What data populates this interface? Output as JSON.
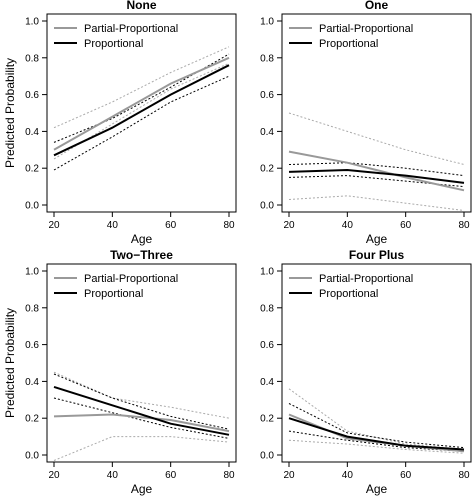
{
  "chart_data": {
    "type": "line",
    "layout": "2x2 panel grid",
    "ylabel": "Predicted Probability",
    "xlabel": "Age",
    "xlim": [
      20,
      80
    ],
    "ylim": [
      0,
      1
    ],
    "xticks": [
      20,
      40,
      60,
      80
    ],
    "yticks": [
      0.0,
      0.2,
      0.4,
      0.6,
      0.8,
      1.0
    ],
    "legend_position": "top-left",
    "legend": [
      {
        "label": "Partial-Proportional",
        "color": "#999999",
        "style": "solid"
      },
      {
        "label": "Proportional",
        "color": "#000000",
        "style": "solid"
      }
    ],
    "colors": {
      "partial": "#999999",
      "proportional": "#000000",
      "ci_partial": "#aaaaaa",
      "ci_proportional": "#000000"
    },
    "panels": [
      {
        "title": "None",
        "show_ylabel": true,
        "x": [
          20,
          40,
          60,
          80
        ],
        "series": [
          {
            "name": "Partial-Proportional",
            "kind": "line",
            "y": [
              0.3,
              0.48,
              0.66,
              0.8
            ]
          },
          {
            "name": "Proportional",
            "kind": "line",
            "y": [
              0.27,
              0.42,
              0.6,
              0.76
            ]
          },
          {
            "kind": "ci-lower-partial",
            "y": [
              0.25,
              0.44,
              0.63,
              0.77
            ]
          },
          {
            "kind": "ci-upper-partial",
            "y": [
              0.42,
              0.56,
              0.72,
              0.86
            ]
          },
          {
            "kind": "ci-lower-proportional",
            "y": [
              0.19,
              0.37,
              0.56,
              0.7
            ]
          },
          {
            "kind": "ci-upper-proportional",
            "y": [
              0.34,
              0.47,
              0.64,
              0.82
            ]
          }
        ]
      },
      {
        "title": "One",
        "show_ylabel": false,
        "x": [
          20,
          40,
          60,
          80
        ],
        "series": [
          {
            "name": "Partial-Proportional",
            "kind": "line",
            "y": [
              0.29,
              0.23,
              0.15,
              0.08
            ]
          },
          {
            "name": "Proportional",
            "kind": "line",
            "y": [
              0.18,
              0.19,
              0.16,
              0.12
            ]
          },
          {
            "kind": "ci-lower-partial",
            "y": [
              0.03,
              0.05,
              0.01,
              -0.03
            ]
          },
          {
            "kind": "ci-upper-partial",
            "y": [
              0.5,
              0.4,
              0.3,
              0.22
            ]
          },
          {
            "kind": "ci-lower-proportional",
            "y": [
              0.15,
              0.16,
              0.13,
              0.1
            ]
          },
          {
            "kind": "ci-upper-proportional",
            "y": [
              0.22,
              0.23,
              0.2,
              0.16
            ]
          }
        ]
      },
      {
        "title": "Two−Three",
        "show_ylabel": true,
        "x": [
          20,
          40,
          60,
          80
        ],
        "series": [
          {
            "name": "Partial-Proportional",
            "kind": "line",
            "y": [
              0.21,
              0.22,
              0.19,
              0.13
            ]
          },
          {
            "name": "Proportional",
            "kind": "line",
            "y": [
              0.37,
              0.27,
              0.17,
              0.11
            ]
          },
          {
            "kind": "ci-lower-partial",
            "y": [
              -0.03,
              0.1,
              0.1,
              0.07
            ]
          },
          {
            "kind": "ci-upper-partial",
            "y": [
              0.45,
              0.31,
              0.26,
              0.2
            ]
          },
          {
            "kind": "ci-lower-proportional",
            "y": [
              0.31,
              0.23,
              0.15,
              0.09
            ]
          },
          {
            "kind": "ci-upper-proportional",
            "y": [
              0.44,
              0.31,
              0.21,
              0.14
            ]
          }
        ]
      },
      {
        "title": "Four Plus",
        "show_ylabel": false,
        "x": [
          20,
          40,
          60,
          80
        ],
        "series": [
          {
            "name": "Partial-Proportional",
            "kind": "line",
            "y": [
              0.22,
              0.09,
              0.05,
              0.02
            ]
          },
          {
            "name": "Proportional",
            "kind": "line",
            "y": [
              0.2,
              0.1,
              0.05,
              0.03
            ]
          },
          {
            "kind": "ci-lower-partial",
            "y": [
              0.08,
              0.06,
              0.03,
              0.01
            ]
          },
          {
            "kind": "ci-upper-partial",
            "y": [
              0.36,
              0.13,
              0.06,
              0.03
            ]
          },
          {
            "kind": "ci-lower-proportional",
            "y": [
              0.13,
              0.08,
              0.04,
              0.02
            ]
          },
          {
            "kind": "ci-upper-proportional",
            "y": [
              0.28,
              0.12,
              0.07,
              0.04
            ]
          }
        ]
      }
    ]
  }
}
